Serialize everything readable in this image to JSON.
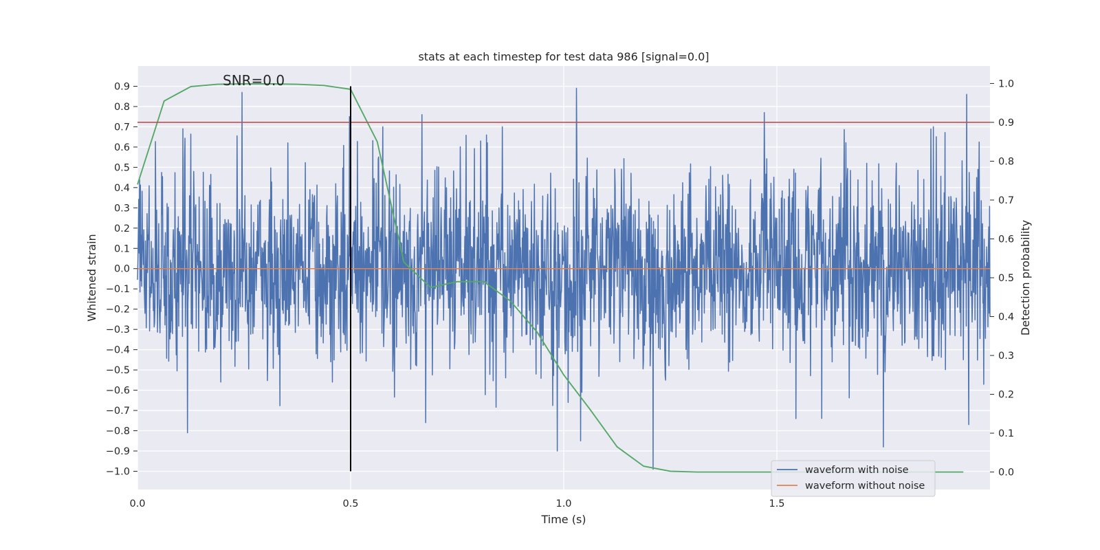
{
  "chart_data": {
    "type": "line",
    "title": "stats at each timestep for test data 986 [signal=0.0]",
    "xlabel": "Time (s)",
    "ylabel": "Whitened strain",
    "ylabel_right": "Detection probability",
    "xlim": [
      0.0,
      2.0
    ],
    "ylim": [
      -1.09,
      1.0
    ],
    "ylim_right": [
      -0.045,
      1.045
    ],
    "x_ticks": [
      0.0,
      0.5,
      1.0,
      1.5
    ],
    "x_tick_labels": [
      "0.0",
      "0.5",
      "1.0",
      "1.5"
    ],
    "y_ticks": [
      0.9,
      0.8,
      0.7,
      0.6,
      0.5,
      0.4,
      0.3,
      0.2,
      0.1,
      0.0,
      -0.1,
      -0.2,
      -0.3,
      -0.4,
      -0.5,
      -0.6,
      -0.7,
      -0.8,
      -0.9,
      -1.0
    ],
    "y_tick_labels": [
      "0.9",
      "0.8",
      "0.7",
      "0.6",
      "0.5",
      "0.4",
      "0.3",
      "0.2",
      "0.1",
      "0.0",
      "−0.1",
      "−0.2",
      "−0.3",
      "−0.4",
      "−0.5",
      "−0.6",
      "−0.7",
      "−0.8",
      "−0.9",
      "−1.0"
    ],
    "y_ticks_right": [
      1.0,
      0.9,
      0.8,
      0.7,
      0.6,
      0.5,
      0.4,
      0.3,
      0.2,
      0.1,
      0.0
    ],
    "y_tick_labels_right": [
      "1.0",
      "0.9",
      "0.8",
      "0.7",
      "0.6",
      "0.5",
      "0.4",
      "0.3",
      "0.2",
      "0.1",
      "0.0"
    ],
    "annotation": "SNR=0.0",
    "threshold": {
      "axis": "right",
      "value": 0.9,
      "color": "#c44e52"
    },
    "vertical_marker": {
      "x": 0.5,
      "y_from": -1.0,
      "y_to": 0.9,
      "color": "#000000"
    },
    "series": [
      {
        "name": "waveform with noise",
        "color": "#4c72b0",
        "axis": "left",
        "kind": "noise",
        "x_range": [
          0.0,
          2.0
        ],
        "samples": 2048,
        "seed": 986,
        "spikes": [
          {
            "x": 0.245,
            "y": 0.87
          },
          {
            "x": 0.497,
            "y": 0.75
          },
          {
            "x": 0.667,
            "y": 0.76
          },
          {
            "x": 1.03,
            "y": 0.89
          },
          {
            "x": 1.47,
            "y": 0.77
          },
          {
            "x": 1.945,
            "y": 0.86
          },
          {
            "x": 0.117,
            "y": -0.81
          },
          {
            "x": 0.676,
            "y": -0.76
          },
          {
            "x": 0.985,
            "y": -0.9
          },
          {
            "x": 1.04,
            "y": -0.85
          },
          {
            "x": 1.21,
            "y": -0.99
          },
          {
            "x": 1.75,
            "y": -0.88
          },
          {
            "x": 1.95,
            "y": -0.77
          }
        ]
      },
      {
        "name": "waveform without noise",
        "color": "#dd8452",
        "axis": "left",
        "x": [
          0.0,
          2.0
        ],
        "y": [
          0.0,
          0.0
        ]
      },
      {
        "name": "detection probability",
        "color": "#55a868",
        "axis": "right",
        "x": [
          0.0,
          0.0625,
          0.125,
          0.1875,
          0.25,
          0.3125,
          0.375,
          0.4375,
          0.5,
          0.5625,
          0.625,
          0.6875,
          0.75,
          0.8125,
          0.875,
          0.9375,
          1.0,
          1.0625,
          1.125,
          1.1875,
          1.25,
          1.3125,
          1.375,
          1.4375,
          1.5,
          1.5625,
          1.625,
          1.6875,
          1.75,
          1.8125,
          1.875,
          1.9375
        ],
        "y": [
          0.74,
          0.955,
          0.992,
          0.998,
          0.999,
          0.999,
          0.998,
          0.995,
          0.985,
          0.85,
          0.54,
          0.475,
          0.49,
          0.49,
          0.44,
          0.36,
          0.25,
          0.16,
          0.065,
          0.015,
          0.002,
          0.0,
          0.0,
          0.0,
          0.0,
          0.0,
          0.0,
          0.0,
          0.0,
          0.0,
          0.0,
          0.0
        ]
      }
    ],
    "legend": {
      "placement": "lower-right",
      "entries": [
        {
          "label": "waveform with noise",
          "color": "#4c72b0"
        },
        {
          "label": "waveform without noise",
          "color": "#dd8452"
        }
      ]
    }
  }
}
